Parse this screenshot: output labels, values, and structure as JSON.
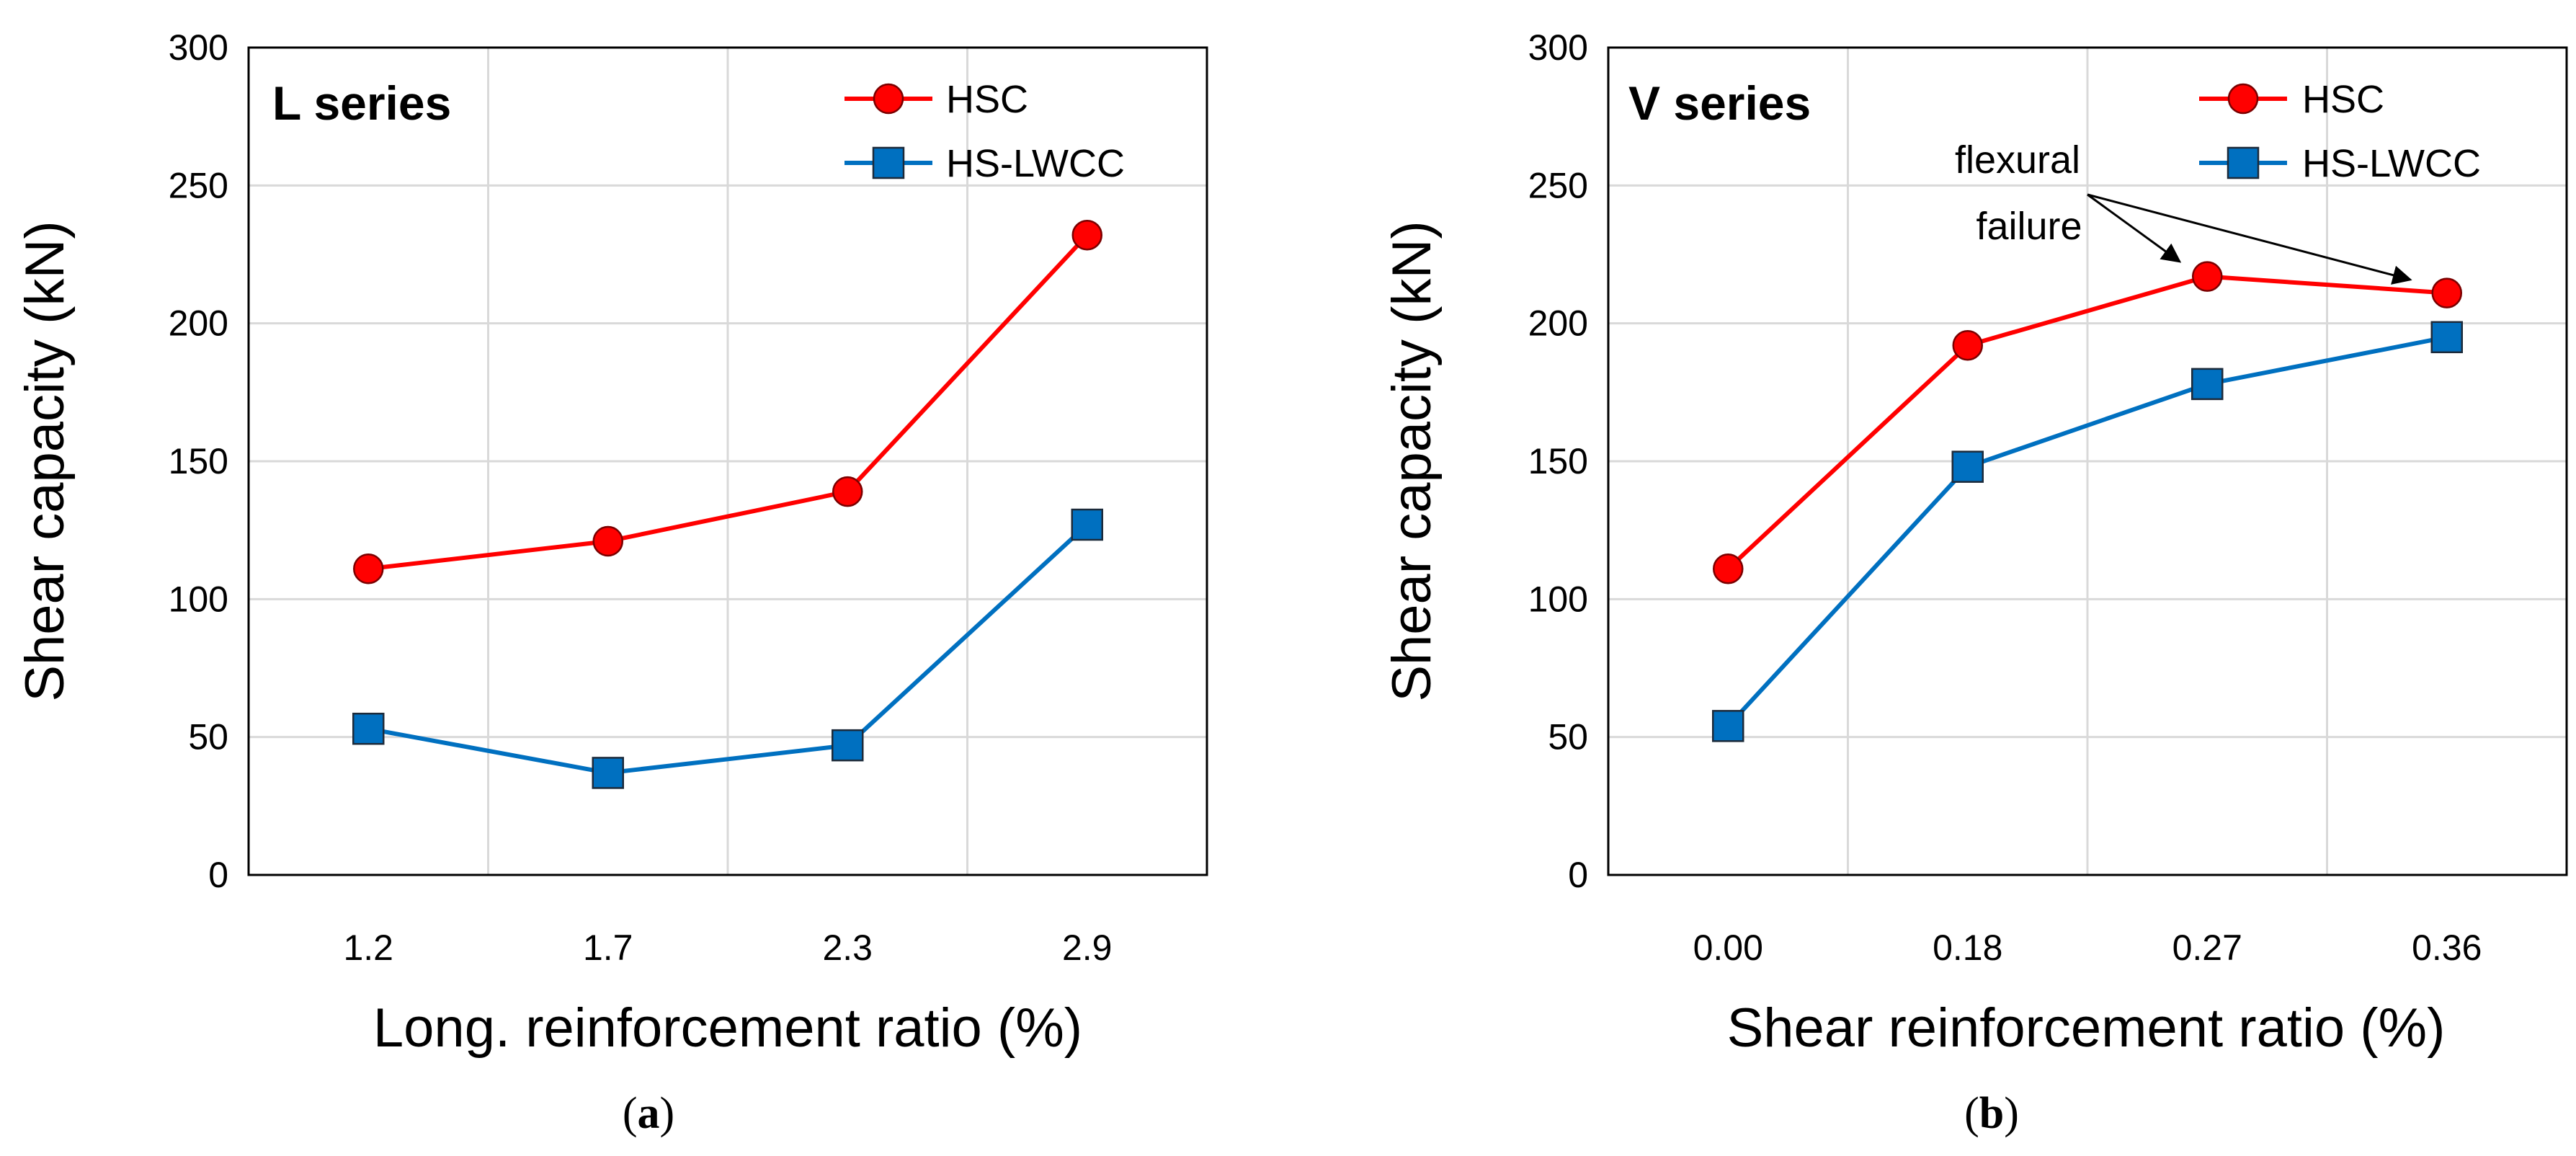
{
  "chart_data": [
    {
      "type": "line",
      "panel_prefix": "(",
      "panel_letter": "a",
      "panel_suffix": ")",
      "title": "L series",
      "xlabel": "Long. reinforcement ratio (%)",
      "ylabel": "Shear capacity (kN)",
      "categories": [
        "1.2",
        "1.7",
        "2.3",
        "2.9"
      ],
      "ylim": [
        0,
        300
      ],
      "yticks": [
        "0",
        "50",
        "100",
        "150",
        "200",
        "250",
        "300"
      ],
      "grid": true,
      "legend_position": "top-right",
      "series": [
        {
          "name": "HSC",
          "color": "#ff0000",
          "marker": "circle",
          "values": [
            111,
            121,
            139,
            232
          ]
        },
        {
          "name": "HS-LWCC",
          "color": "#0070c0",
          "marker": "square",
          "values": [
            53,
            37,
            47,
            127
          ]
        }
      ]
    },
    {
      "type": "line",
      "panel_prefix": "(",
      "panel_letter": "b",
      "panel_suffix": ")",
      "title": "V series",
      "xlabel": "Shear reinforcement ratio (%)",
      "ylabel": "Shear capacity (kN)",
      "categories": [
        "0.00",
        "0.18",
        "0.27",
        "0.36"
      ],
      "ylim": [
        0,
        300
      ],
      "yticks": [
        "0",
        "50",
        "100",
        "150",
        "200",
        "250",
        "300"
      ],
      "grid": true,
      "legend_position": "top-right",
      "annotation": {
        "line1": "flexural",
        "line2": "failure",
        "points_to": "HSC at 0.27 and 0.36"
      },
      "series": [
        {
          "name": "HSC",
          "color": "#ff0000",
          "marker": "circle",
          "values": [
            111,
            192,
            217,
            211
          ]
        },
        {
          "name": "HS-LWCC",
          "color": "#0070c0",
          "marker": "square",
          "values": [
            54,
            148,
            178,
            195
          ]
        }
      ]
    }
  ]
}
